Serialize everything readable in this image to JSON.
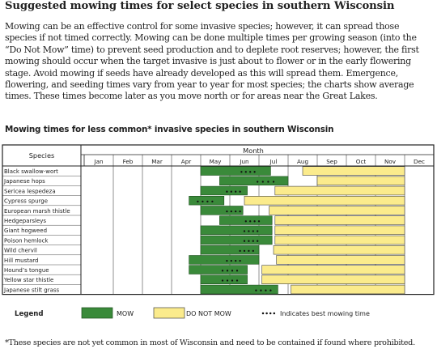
{
  "heading": "Suggested mowing times for select species in southern Wisconsin",
  "intro": "Mowing can be an effective control for some invasive species; however, it can spread those species if not timed correctly. Mowing can be done multiple times per growing season (into the “Do Not Mow” time) to prevent seed production and to deplete root reserves; however, the first mowing should occur when the target invasive is just about to flower or in the early flowering stage. Avoid mowing if seeds have already developed as this will spread them. Emergence, flowering, and seeding times vary from year to year for most species; the charts show average times. These times become later as you move north or for areas near the Great Lakes.",
  "chart_heading": "Mowing times for less common* invasive species in southern Wisconsin",
  "footnote": "*These species are not yet common in most of Wisconsin and need to be contained if found where prohibited.",
  "colors": {
    "mow": "#3a8a3a",
    "do_not_mow": "#fbeb8c",
    "border": "#222222"
  },
  "chart_data": {
    "type": "gantt",
    "species_header": "Species",
    "month_header": "Month",
    "months": [
      "Jan",
      "Feb",
      "Mar",
      "Apr",
      "May",
      "Jun",
      "Jul",
      "Aug",
      "Sep",
      "Oct",
      "Nov",
      "Dec"
    ],
    "x_unit": "month (1.0 = start of Jan, 13.0 = end of Dec)",
    "rows": [
      {
        "species": "Black swallow-wort",
        "mow": [
          5.0,
          7.4
        ],
        "do_not_mow": [
          8.5,
          12.0
        ],
        "best_mow": [
          6.4,
          6.85
        ]
      },
      {
        "species": "Japanese hops",
        "mow": [
          5.65,
          8.0
        ],
        "do_not_mow": [
          9.0,
          12.0
        ],
        "best_mow": [
          6.95,
          7.5
        ]
      },
      {
        "species": "Sericea lespedeza",
        "mow": [
          5.0,
          6.6
        ],
        "do_not_mow": [
          7.55,
          12.0
        ],
        "best_mow": [
          5.9,
          6.35
        ]
      },
      {
        "species": "Cypress spurge",
        "mow": [
          4.6,
          5.8
        ],
        "do_not_mow": [
          6.5,
          12.0
        ],
        "best_mow": [
          4.9,
          5.4
        ]
      },
      {
        "species": "European marsh thistle",
        "mow": [
          5.0,
          6.45
        ],
        "do_not_mow": [
          7.35,
          12.0
        ],
        "best_mow": [
          5.9,
          6.35
        ]
      },
      {
        "species": "Hedgeparsleys",
        "mow": [
          5.65,
          7.45
        ],
        "do_not_mow": [
          7.55,
          12.0
        ],
        "best_mow": [
          6.55,
          7.0
        ]
      },
      {
        "species": "Giant hogweed",
        "mow": [
          5.0,
          7.45
        ],
        "do_not_mow": [
          7.55,
          12.0
        ],
        "best_mow": [
          6.5,
          6.95
        ]
      },
      {
        "species": "Poison hemlock",
        "mow": [
          5.0,
          7.45
        ],
        "do_not_mow": [
          7.55,
          12.0
        ],
        "best_mow": [
          6.5,
          6.95
        ]
      },
      {
        "species": "Wild chervil",
        "mow": [
          5.0,
          7.0
        ],
        "do_not_mow": [
          7.5,
          12.0
        ],
        "best_mow": [
          6.35,
          6.8
        ]
      },
      {
        "species": "Hill mustard",
        "mow": [
          4.6,
          7.0
        ],
        "do_not_mow": [
          7.6,
          12.0
        ],
        "best_mow": [
          5.9,
          6.35
        ]
      },
      {
        "species": "Hound’s tongue",
        "mow": [
          4.6,
          6.6
        ],
        "do_not_mow": [
          7.1,
          12.0
        ],
        "best_mow": [
          5.75,
          6.25
        ]
      },
      {
        "species": "Yellow star thistle",
        "mow": [
          5.0,
          6.6
        ],
        "do_not_mow": [
          7.1,
          12.0
        ],
        "best_mow": [
          5.75,
          6.25
        ]
      },
      {
        "species": "Japanese stilt grass",
        "mow": [
          5.0,
          7.65
        ],
        "do_not_mow": [
          8.1,
          12.0
        ],
        "best_mow": [
          6.9,
          7.4
        ]
      }
    ],
    "legend": {
      "label": "Legend",
      "mow": "MOW",
      "do_not_mow": "DO NOT MOW",
      "best": "Indicates best mowing time"
    }
  }
}
